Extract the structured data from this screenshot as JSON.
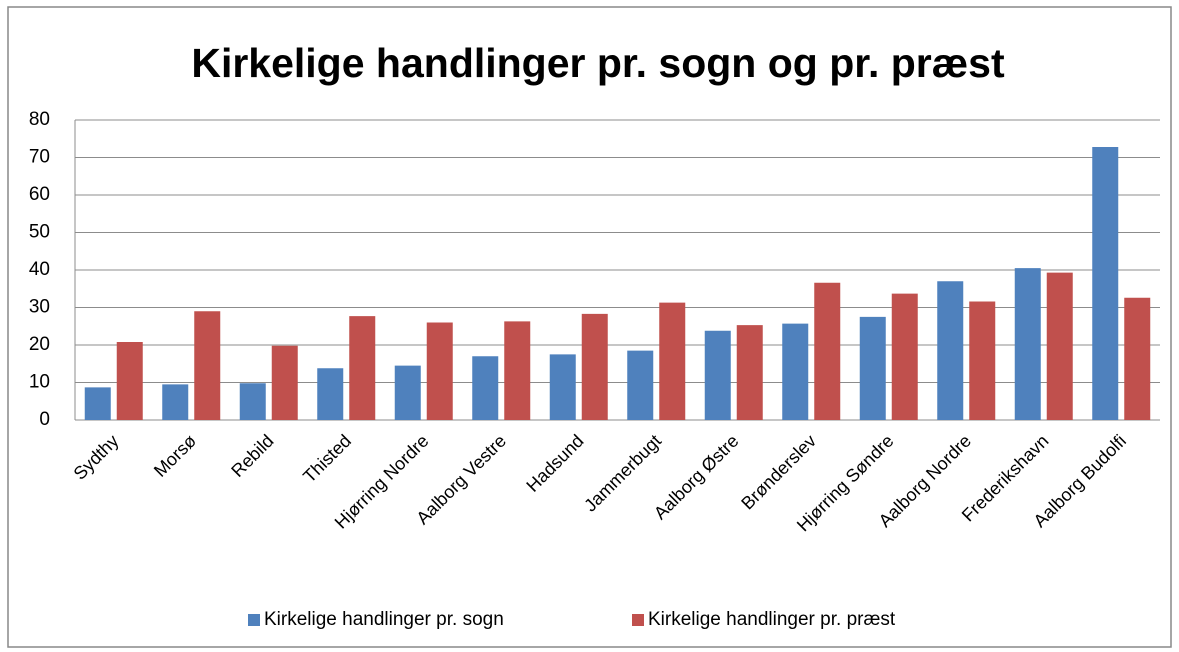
{
  "chart_data": {
    "type": "bar",
    "title": "Kirkelige handlinger pr. sogn og pr. præst",
    "categories": [
      "Sydthy",
      "Morsø",
      "Rebild",
      "Thisted",
      "Hjørring Nordre",
      "Aalborg Vestre",
      "Hadsund",
      "Jammerbugt",
      "Aalborg Østre",
      "Brønderslev",
      "Hjørring Søndre",
      "Aalborg Nordre",
      "Frederikshavn",
      "Aalborg Budolfi"
    ],
    "series": [
      {
        "name": "Kirkelige handlinger pr. sogn",
        "color": "#4f81bd",
        "values": [
          8.7,
          9.5,
          9.8,
          13.8,
          14.5,
          17,
          17.5,
          18.5,
          23.8,
          25.7,
          27.5,
          37,
          40.5,
          72.8
        ]
      },
      {
        "name": "Kirkelige handlinger pr. præst",
        "color": "#c0504d",
        "values": [
          20.8,
          29,
          19.8,
          27.7,
          26,
          26.3,
          28.3,
          31.3,
          25.3,
          36.6,
          33.7,
          31.6,
          39.3,
          32.6
        ]
      }
    ],
    "ylim": [
      0,
      80
    ],
    "yticks": [
      0,
      10,
      20,
      30,
      40,
      50,
      60,
      70,
      80
    ],
    "grid": true,
    "legend": "bottom"
  }
}
